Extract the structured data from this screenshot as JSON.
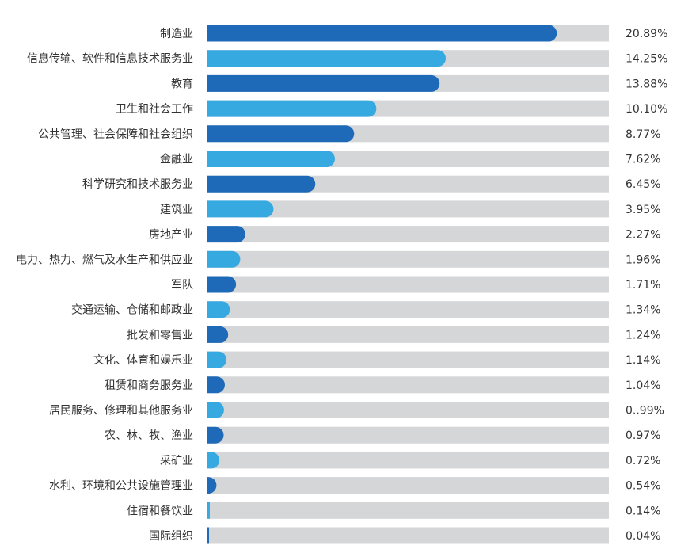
{
  "chart_data": {
    "type": "bar",
    "orientation": "horizontal",
    "title": "",
    "xlabel": "",
    "ylabel": "",
    "xlim": [
      0,
      24
    ],
    "grid": false,
    "categories": [
      "制造业",
      "信息传输、软件和信息技术服务业",
      "教育",
      "卫生和社会工作",
      "公共管理、社会保障和社会组织",
      "金融业",
      "科学研究和技术服务业",
      "建筑业",
      "房地产业",
      "电力、热力、燃气及水生产和供应业",
      "军队",
      "交通运输、仓储和邮政业",
      "批发和零售业",
      "文化、体育和娱乐业",
      "租赁和商务服务业",
      "居民服务、修理和其他服务业",
      "农、林、牧、渔业",
      "采矿业",
      "水利、环境和公共设施管理业",
      "住宿和餐饮业",
      "国际组织"
    ],
    "values": [
      20.89,
      14.25,
      13.88,
      10.1,
      8.77,
      7.62,
      6.45,
      3.95,
      2.27,
      1.96,
      1.71,
      1.34,
      1.24,
      1.14,
      1.04,
      0.99,
      0.97,
      0.72,
      0.54,
      0.14,
      0.04
    ],
    "value_labels": [
      "20.89%",
      "14.25%",
      "13.88%",
      "10.10%",
      "8.77%",
      "7.62%",
      "6.45%",
      "3.95%",
      "2.27%",
      "1.96%",
      "1.71%",
      "1.34%",
      "1.24%",
      "1.14%",
      "1.04%",
      "0..99%",
      "0.97%",
      "0.72%",
      "0.54%",
      "0.14%",
      "0.04%"
    ],
    "colors": {
      "dark_blue": "#1f6ab8",
      "light_blue": "#36a9e1",
      "track": "#d5d6d8"
    }
  }
}
